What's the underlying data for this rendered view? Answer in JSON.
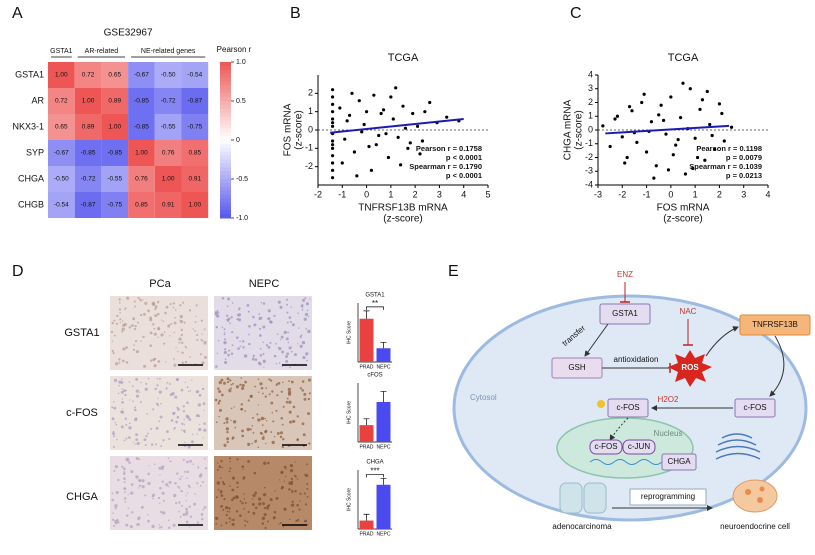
{
  "figure": {
    "panel_labels": [
      "A",
      "B",
      "C",
      "D",
      "E"
    ]
  },
  "chart_data": [
    {
      "type": "heatmap",
      "title": "GSE32967",
      "column_groups": [
        "GSTA1",
        "AR-related",
        "NE-related genes"
      ],
      "rows": [
        "GSTA1",
        "AR",
        "NKX3-1",
        "SYP",
        "CHGA",
        "CHGB"
      ],
      "values": [
        [
          1,
          0.72,
          0.65,
          -0.67,
          -0.5,
          -0.54
        ],
        [
          0.72,
          1,
          0.89,
          -0.85,
          -0.72,
          -0.87
        ],
        [
          0.65,
          0.89,
          1,
          -0.85,
          -0.55,
          -0.75
        ],
        [
          -0.67,
          -0.85,
          -0.85,
          1,
          0.76,
          0.85
        ],
        [
          -0.5,
          -0.72,
          -0.55,
          0.76,
          1,
          0.91
        ],
        [
          -0.54,
          -0.87,
          -0.75,
          0.85,
          0.91,
          1
        ]
      ],
      "value_labels": [
        [
          "1.00",
          "0.72",
          "0.65",
          "-0.67",
          "-0.50",
          "-0.54"
        ],
        [
          "0.72",
          "1.00",
          "0.89",
          "-0.85",
          "-0.72",
          "-0.87"
        ],
        [
          "0.65",
          "0.89",
          "1.00",
          "-0.85",
          "-0.55",
          "-0.75"
        ],
        [
          "-0.67",
          "-0.85",
          "-0.85",
          "1.00",
          "0.76",
          "0.85"
        ],
        [
          "-0.50",
          "-0.72",
          "-0.55",
          "0.76",
          "1.00",
          "0.91"
        ],
        [
          "-0.54",
          "-0.87",
          "-0.75",
          "0.85",
          "0.91",
          "1.00"
        ]
      ],
      "colorbar": {
        "label": "Pearson r",
        "lim": [
          -1,
          1
        ],
        "ticks": [
          {
            "value": 1,
            "label": "1.0"
          },
          0.5,
          0,
          -0.5,
          {
            "value": -1,
            "label": "-1.0"
          }
        ],
        "colors": [
          "#5656ee",
          "#ffffff",
          "#ee5656"
        ]
      }
    },
    {
      "type": "scatter",
      "title": "TCGA",
      "x_label": [
        "TNFRSF13B mRNA",
        "(z-score)"
      ],
      "y_label": [
        "FOS mRNA",
        "(z-score)"
      ],
      "xlim": [
        -2,
        5
      ],
      "xticks": [
        -2,
        -1,
        0,
        1,
        2,
        3,
        4,
        5
      ],
      "ylim": [
        -3,
        3
      ],
      "yticks": [
        -2,
        -1,
        0,
        1,
        2
      ],
      "reference_line": 0,
      "color": "#000000",
      "x": [
        -1.4,
        -1.4,
        -1.4,
        -1.4,
        -1.4,
        -1.4,
        -1.4,
        -1.4,
        -1.4,
        -1.4,
        -1.4,
        -1.4,
        -1.4,
        -1.4,
        -1.4,
        -1.1,
        -0.9,
        -0.7,
        -0.5,
        -0.3,
        -0.1,
        0.1,
        0.3,
        0.5,
        0.7,
        0.9,
        1.1,
        1.3,
        1.5,
        1.7,
        1.9,
        2.1,
        2.3,
        2.6,
        2.9,
        3.3,
        3.8,
        -1.0,
        -0.6,
        -0.2,
        0.2,
        0.6,
        1.0,
        1.4,
        1.8,
        2.2,
        -0.8,
        0.0,
        0.8,
        1.6,
        2.4,
        -0.4,
        0.4,
        1.2
      ],
      "values": [
        -2.6,
        -2.2,
        -1.8,
        -1.4,
        -1.0,
        -0.6,
        -0.2,
        0.2,
        0.6,
        1.0,
        1.4,
        1.8,
        2.2,
        -0.8,
        0.4,
        1.2,
        -0.5,
        0.8,
        -1.2,
        1.6,
        0.3,
        -0.9,
        1.9,
        -0.3,
        1.1,
        -1.5,
        0.6,
        -0.4,
        1.3,
        -1.0,
        0.9,
        0.2,
        -0.6,
        1.5,
        0.4,
        0.7,
        0.5,
        -1.8,
        2.0,
        -0.1,
        -2.2,
        0.9,
        1.8,
        -1.9,
        -0.7,
        -1.3,
        0.5,
        1.0,
        -0.2,
        0.1,
        1.0,
        -2.5,
        -0.8,
        2.3
      ],
      "fit": {
        "x": [
          -1.5,
          4
        ],
        "values": [
          -0.15,
          0.6
        ],
        "color": "#1c1cb4"
      },
      "annotations": [
        "Pearson r = 0.1758",
        "p < 0.0001",
        "Spearman r = 0.1790",
        "p < 0.0001"
      ]
    },
    {
      "type": "scatter",
      "title": "TCGA",
      "x_label": [
        "FOS mRNA",
        "(z-score)"
      ],
      "y_label": [
        "CHGA mRNA",
        "(z-score)"
      ],
      "xlim": [
        -3,
        4
      ],
      "xticks": [
        -3,
        -2,
        -1,
        0,
        1,
        2,
        3,
        4
      ],
      "ylim": [
        -4,
        4
      ],
      "yticks": [
        -4,
        -3,
        -2,
        -1,
        0,
        1,
        2,
        3,
        4
      ],
      "reference_line": 0,
      "color": "#000000",
      "x": [
        -2.8,
        -2.5,
        -2.2,
        -2.0,
        -1.8,
        -1.6,
        -1.4,
        -1.2,
        -1.0,
        -0.8,
        -0.6,
        -0.4,
        -0.2,
        0.0,
        0.2,
        0.4,
        0.6,
        0.8,
        1.0,
        1.2,
        1.4,
        1.6,
        1.8,
        2.0,
        2.2,
        2.5,
        -2.3,
        -1.9,
        -1.5,
        -1.1,
        -0.7,
        -0.3,
        0.1,
        0.5,
        0.9,
        1.3,
        1.7,
        2.1,
        -1.7,
        -0.9,
        -0.1,
        0.7,
        1.5,
        0.3,
        -0.5,
        1.1
      ],
      "values": [
        0.3,
        -1.2,
        1.0,
        -0.5,
        -2.0,
        1.4,
        -0.9,
        2.0,
        -1.6,
        0.6,
        -2.6,
        1.8,
        -0.3,
        2.4,
        -1.1,
        0.9,
        -3.2,
        3.0,
        -0.6,
        1.5,
        -2.2,
        0.4,
        -1.4,
        1.9,
        -0.8,
        0.2,
        0.8,
        -2.4,
        -0.2,
        2.6,
        -3.5,
        0.7,
        -1.8,
        3.4,
        -2.8,
        2.2,
        -0.4,
        1.2,
        1.7,
        -0.1,
        -2.9,
        0.1,
        2.8,
        -0.7,
        1.1,
        -2.0
      ],
      "fit": {
        "x": [
          -2.7,
          2.4
        ],
        "values": [
          -0.25,
          0.3
        ],
        "color": "#1c1cb4"
      },
      "annotations": [
        "Pearson r = 0.1198",
        "p = 0.0079",
        "Spearman r = 0.1039",
        "p = 0.0213"
      ]
    },
    {
      "type": "bar",
      "title": "GSTA1",
      "y_label": "IHC Score",
      "categories": [
        "PRAD",
        "NEPC"
      ],
      "values": [
        11,
        3.5
      ],
      "errors": [
        2,
        1.5
      ],
      "colors": [
        "#e8413f",
        "#4a4af0"
      ],
      "ylim": [
        0,
        15
      ],
      "significance": "**"
    },
    {
      "type": "bar",
      "title": "cFOS",
      "y_label": "IHC Score",
      "categories": [
        "PRAD",
        "NEPC"
      ],
      "values": [
        4,
        9.5
      ],
      "errors": [
        1.5,
        2.5
      ],
      "colors": [
        "#e8413f",
        "#4a4af0"
      ],
      "ylim": [
        0,
        14
      ]
    },
    {
      "type": "bar",
      "title": "CHGA",
      "y_label": "IHC Score",
      "categories": [
        "PRAD",
        "NEPC"
      ],
      "values": [
        2,
        10.5
      ],
      "errors": [
        1.5,
        1.5
      ],
      "colors": [
        "#e8413f",
        "#4a4af0"
      ],
      "ylim": [
        0,
        14
      ],
      "significance": "***"
    }
  ],
  "ihc": {
    "columns": [
      "PCa",
      "NEPC"
    ],
    "rows": [
      "GSTA1",
      "c-FOS",
      "CHGA"
    ]
  },
  "diagram": {
    "nodes": [
      "ENZ",
      "GSTA1",
      "NAC",
      "TNFRSF13B",
      "transfer",
      "GSH",
      "antioxidation",
      "ROS",
      "H2O2",
      "Cytosol",
      "c-FOS",
      "c-FOS",
      "Nucleus",
      "c-FOS",
      "c-JUN",
      "CHGA",
      "reprogramming",
      "adenocarcinoma",
      "neuroendocrine cell"
    ]
  }
}
